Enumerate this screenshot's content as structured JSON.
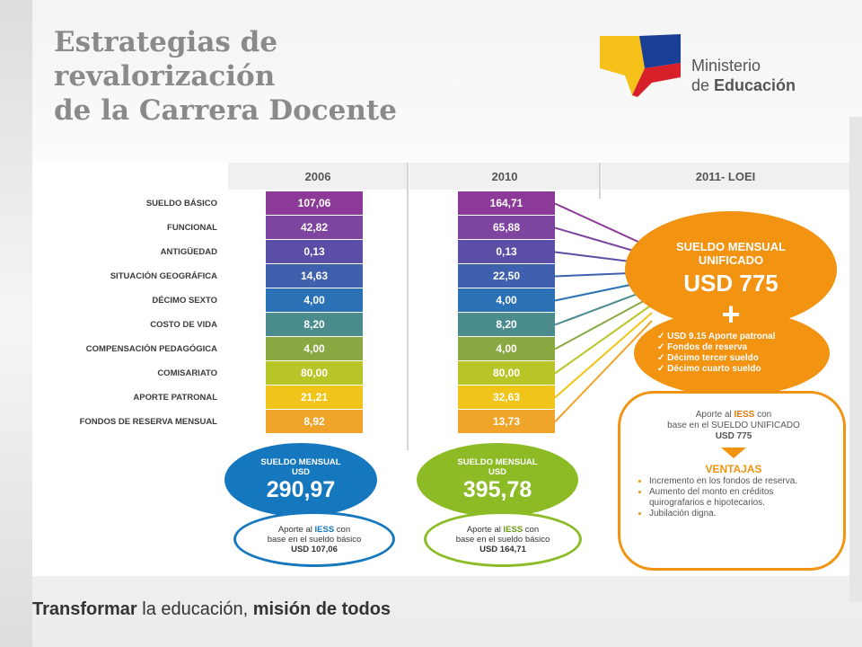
{
  "title_lines": [
    "Estrategias de",
    "revalorización",
    "de la Carrera Docente"
  ],
  "logo": {
    "line1": "Ministerio",
    "line2_prefix": "de ",
    "line2_bold": "Educación"
  },
  "table": {
    "headers": [
      "2006",
      "2010",
      "2011- LOEI"
    ],
    "rows": [
      {
        "label": "SUELDO BÁSICO",
        "v2006": "107,06",
        "v2010": "164,71",
        "color": "#8c3a97"
      },
      {
        "label": "FUNCIONAL",
        "v2006": "42,82",
        "v2010": "65,88",
        "color": "#7d44a0"
      },
      {
        "label": "ANTIGÜEDAD",
        "v2006": "0,13",
        "v2010": "0,13",
        "color": "#5a4ea6"
      },
      {
        "label": "SITUACIÓN GEOGRÁFICA",
        "v2006": "14,63",
        "v2010": "22,50",
        "color": "#3f60ad"
      },
      {
        "label": "DÉCIMO SEXTO",
        "v2006": "4,00",
        "v2010": "4,00",
        "color": "#2a72b5"
      },
      {
        "label": "COSTO DE VIDA",
        "v2006": "8,20",
        "v2010": "8,20",
        "color": "#4a8c8e"
      },
      {
        "label": "COMPENSACIÓN PEDAGÓGICA",
        "v2006": "4,00",
        "v2010": "4,00",
        "color": "#89a842"
      },
      {
        "label": "COMISARIATO",
        "v2006": "80,00",
        "v2010": "80,00",
        "color": "#b8c527"
      },
      {
        "label": "APORTE PATRONAL",
        "v2006": "21,21",
        "v2010": "32,63",
        "color": "#f1c41a"
      },
      {
        "label": "FONDOS DE RESERVA MENSUAL",
        "v2006": "8,92",
        "v2010": "13,73",
        "color": "#f0a52a"
      }
    ]
  },
  "sum2006": {
    "label": "SUELDO MENSUAL",
    "unit": "USD",
    "value": "290,97",
    "color": "#1577bd"
  },
  "sum2010": {
    "label": "SUELDO MENSUAL",
    "unit": "USD",
    "value": "395,78",
    "color": "#8dbb25"
  },
  "iess2006": {
    "line1_pre": "Aporte al ",
    "line1_bold": "IESS",
    "line1_post": " con",
    "line2": "base en el sueldo básico",
    "line3": "USD 107,06"
  },
  "iess2010": {
    "line1_pre": "Aporte al ",
    "line1_bold": "IESS",
    "line1_post": " con",
    "line2": "base en el sueldo básico",
    "line3": "USD 164,71"
  },
  "loei": {
    "title1": "SUELDO MENSUAL",
    "title2": "UNIFICADO",
    "amount": "USD 775",
    "plus": "+",
    "benefits": [
      "✓ USD 9.15 Aporte patronal",
      "✓ Fondos de reserva",
      "✓ Décimo tercer sueldo",
      "✓ Décimo cuarto sueldo"
    ],
    "iess_pre": "Aporte al ",
    "iess_bold": "IESS",
    "iess_post": " con",
    "iess_line2": "base en el SUELDO UNIFICADO",
    "iess_line3": "USD 775",
    "ventajas": "VENTAJAS",
    "ventajas_items": [
      "Incremento en los fondos de reserva.",
      "Aumento del monto en créditos quirografarios e hipotecarios.",
      "Jubilación digna."
    ],
    "color": "#f29312"
  },
  "footer": {
    "part1": "Transformar",
    "part2": " la educación, ",
    "part3": "misión de todos"
  }
}
